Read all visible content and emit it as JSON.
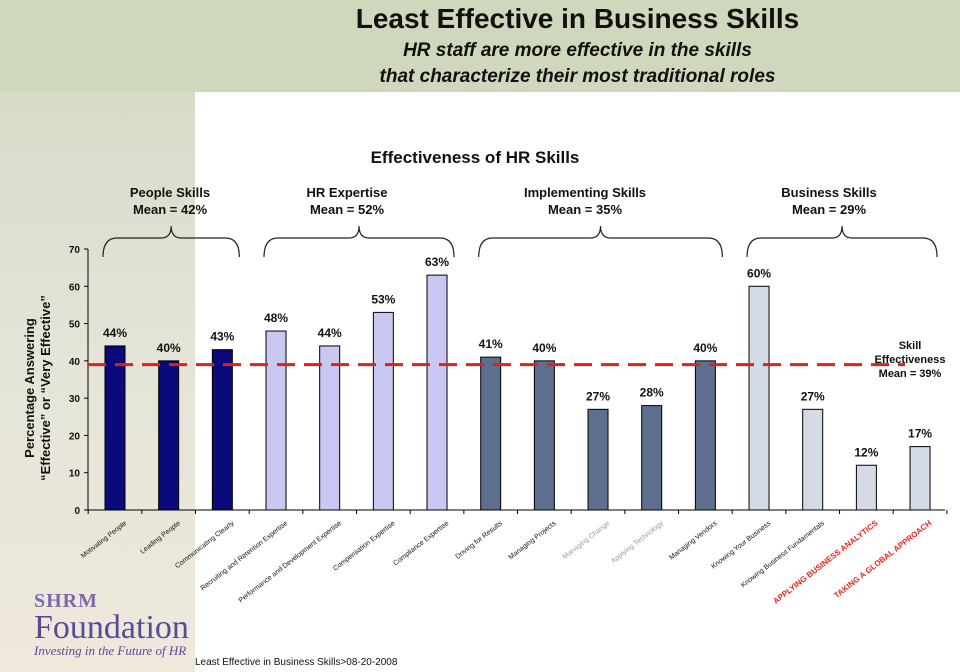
{
  "slide": {
    "title": "Least Effective in Business Skills",
    "subtitle_line1": "HR staff are more effective in the skills",
    "subtitle_line2": "that characterize their most traditional roles",
    "footer": "Least Effective in Business Skills>08-20-2008"
  },
  "logo": {
    "sub": "SHRM",
    "name": "Foundation",
    "tagline": "Investing in the Future of HR"
  },
  "colors": {
    "people": "#0a0a7a",
    "expertise": "#c9c8f2",
    "implementing": "#5d6e8e",
    "business": "#d5dbe6",
    "mean_line": "#e0201b",
    "highlight_label": "#e8261e"
  },
  "chart_data": {
    "type": "bar",
    "title": "Effectiveness of HR Skills",
    "ylabel_line1": "Percentage Answering",
    "ylabel_line2": "“Effective” or “Very Effective”",
    "ylim": [
      0,
      70
    ],
    "yticks": [
      0,
      10,
      20,
      30,
      40,
      50,
      60,
      70
    ],
    "categories": [
      "Motivating People",
      "Leading People",
      "Communicating Clearly",
      "Recruiting and Retention Expertise",
      "Performance and Development Expertise",
      "Compensation Expertise",
      "Compliance Expertise",
      "Driving for Results",
      "Managing Projects",
      "Managing Change",
      "Applying Technology",
      "Managing Vendors",
      "Knowing Your Business",
      "Knowing Business Fundamentals",
      "APPLYING BUSINESS ANALYTICS",
      "TAKING A GLOBAL APPROACH"
    ],
    "values": [
      44,
      40,
      43,
      48,
      44,
      53,
      63,
      41,
      40,
      27,
      28,
      40,
      60,
      27,
      12,
      17
    ],
    "value_labels": [
      "44%",
      "40%",
      "43%",
      "48%",
      "44%",
      "53%",
      "63%",
      "41%",
      "40%",
      "27%",
      "28%",
      "40%",
      "60%",
      "27%",
      "12%",
      "17%"
    ],
    "groups": [
      {
        "name": "People Skills",
        "mean_label": "Mean = 42%",
        "start": 0,
        "end": 2,
        "color_key": "people"
      },
      {
        "name": "HR Expertise",
        "mean_label": "Mean = 52%",
        "start": 3,
        "end": 6,
        "color_key": "expertise"
      },
      {
        "name": "Implementing Skills",
        "mean_label": "Mean = 35%",
        "start": 7,
        "end": 11,
        "color_key": "implementing"
      },
      {
        "name": "Business Skills",
        "mean_label": "Mean = 29%",
        "start": 12,
        "end": 15,
        "color_key": "business"
      }
    ],
    "mean_line": {
      "value": 39,
      "label_line1": "Skill",
      "label_line2": "Effectiveness",
      "label_line3": "Mean = 39%"
    },
    "highlighted_categories": [
      14,
      15
    ],
    "faded_categories": [
      9,
      10
    ],
    "grid": false,
    "legend": "none"
  }
}
